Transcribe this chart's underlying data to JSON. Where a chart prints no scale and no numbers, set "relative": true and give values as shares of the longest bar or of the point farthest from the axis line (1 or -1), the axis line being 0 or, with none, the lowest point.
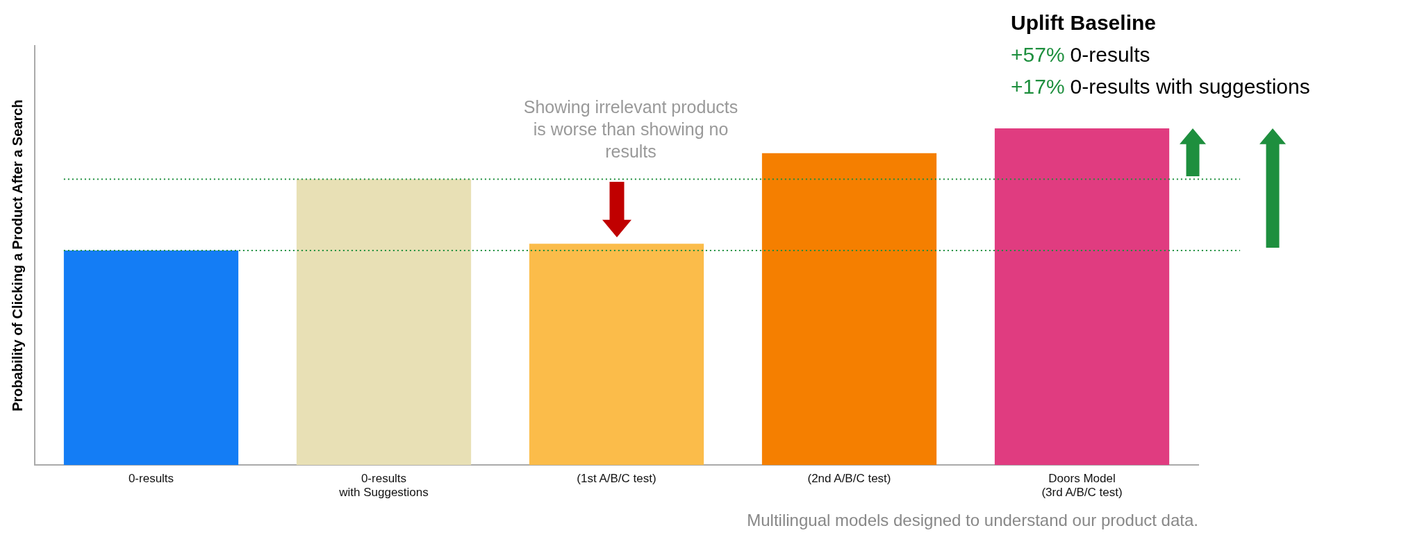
{
  "chart_data": {
    "type": "bar",
    "relative": true,
    "ylabel": "Probability of Clicking a Product After a Search",
    "categories": [
      "0-results",
      "0-results\nwith Suggestions",
      "(1st A/B/C test)",
      "(2nd A/B/C test)",
      "Doors Model\n(3rd A/B/C test)"
    ],
    "values": [
      0.637,
      0.849,
      0.657,
      0.926,
      1
    ],
    "colors": [
      "#147df5",
      "#e8e0b5",
      "#fbbc4a",
      "#f57f00",
      "#e03c80"
    ],
    "grid": false,
    "legend": false,
    "ref_lines": [
      {
        "axis": "y",
        "value": 0.637,
        "color": "#1e8f3e",
        "line_style": "dotted"
      },
      {
        "axis": "y",
        "value": 0.849,
        "color": "#1e8f3e",
        "line_style": "dotted"
      }
    ],
    "annotations": [
      "Showing irrelevant products is worse than showing no results",
      "Uplift",
      "Baseline",
      "+57%",
      "0-results",
      "+17%",
      "0-results with suggestions",
      "Multilingual models designed to understand our product data."
    ]
  }
}
